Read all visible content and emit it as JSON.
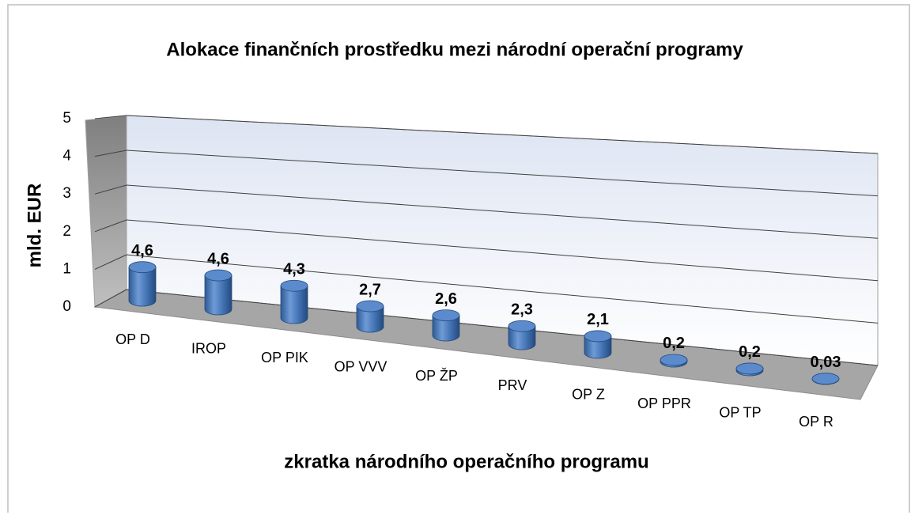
{
  "chart_data": {
    "type": "bar3d",
    "title": "Alokace finančních prostředku mezi národní operační programy",
    "x_label": "zkratka národního operačního programu",
    "y_label": "mld. EUR",
    "categories": [
      "OP D",
      "IROP",
      "OP PIK",
      "OP VVV",
      "OP ŽP",
      "PRV",
      "OP Z",
      "OP PPR",
      "OP TP",
      "OP R"
    ],
    "values": [
      4.6,
      4.6,
      4.3,
      2.7,
      2.6,
      2.3,
      2.1,
      0.2,
      0.2,
      0.03
    ],
    "value_labels": [
      "4,6",
      "4,6",
      "4,3",
      "2,7",
      "2,6",
      "2,3",
      "2,1",
      "0,2",
      "0,2",
      "0,03"
    ],
    "color": "#4f81bd",
    "ylim": [
      0,
      5
    ],
    "yticks": [
      0,
      1,
      2,
      3,
      4,
      5
    ],
    "grid": true
  }
}
